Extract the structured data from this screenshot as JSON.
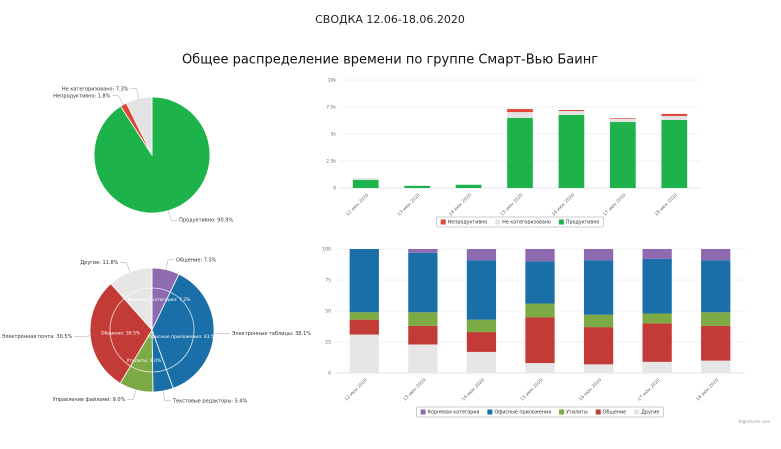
{
  "header": {
    "title": "СВОДКА 12.06-18.06.2020",
    "subtitle": "Общее распределение времени по группе Смарт-Вью Баинг"
  },
  "credits": "Highcharts.com",
  "chart_data": [
    {
      "type": "pie",
      "values": [
        90.9,
        1.8,
        7.3
      ],
      "value_labels": [
        "Продуктивно: 90.9%",
        "Непродуктивно: 1.8%",
        "Не категоризовано: 7.3%"
      ],
      "colors": [
        "#1db34a",
        "#e0463a",
        "#e3e3e3"
      ]
    },
    {
      "type": "stacked_bar",
      "categories": [
        "12 июн 2020",
        "13 июн 2020",
        "14 июн 2020",
        "15 июн 2020",
        "16 июн 2020",
        "17 июн 2020",
        "18 июн 2020"
      ],
      "series": [
        {
          "name": "Непродуктивно",
          "color": "#e0463a",
          "values": [
            0,
            0,
            0,
            280,
            90,
            60,
            190
          ]
        },
        {
          "name": "Не категоризовано",
          "color": "#e3e3e3",
          "values": [
            180,
            0,
            0,
            550,
            370,
            280,
            370
          ]
        },
        {
          "name": "Продуктивно",
          "color": "#1db34a",
          "values": [
            740,
            200,
            300,
            6480,
            6760,
            6110,
            6300
          ]
        }
      ],
      "ylim": [
        0,
        10000
      ],
      "yticks": [
        0,
        {
          "value": 2500,
          "label": "2.5k"
        },
        {
          "value": 5000,
          "label": "5k"
        },
        {
          "value": 7500,
          "label": "7.5k"
        },
        {
          "value": 10000,
          "label": "10k"
        }
      ],
      "grid": true
    },
    {
      "type": "pie",
      "values": [
        7.3,
        38.1,
        5.4,
        9.0,
        30.5,
        11.8
      ],
      "value_labels": [
        "Общение: 7.3%",
        "Электронные таблицы: 38.1%",
        "Текстовые редакторы: 5.4%",
        "Управление файлами: 9.0%",
        "Электронная почта: 30.5%",
        "Другие: 11.8%"
      ],
      "colors": [
        "#8e6bb0",
        "#1a6fa8",
        "#1a6fa8",
        "#7cab45",
        "#c23b37",
        "#e6e6e6"
      ],
      "inner": {
        "values": [
          7.2,
          43.5,
          9.0,
          30.5,
          11.8
        ],
        "value_labels": [
          "Корневая категория: 7.2%",
          "Офисные приложения: 43.5%",
          "Утилиты: 9.0%",
          "Общение: 30.5%",
          null
        ]
      }
    },
    {
      "type": "stacked_bar",
      "categories": [
        "12 июн 2020",
        "13 июн 2020",
        "14 июн 2020",
        "15 июн 2020",
        "16 июн 2020",
        "17 июн 2020",
        "18 июн 2020"
      ],
      "series": [
        {
          "name": "Корневая категория",
          "color": "#8e6bb0",
          "values": [
            0,
            3,
            9,
            10,
            9,
            8,
            9
          ]
        },
        {
          "name": "Офисные приложения",
          "color": "#1a6fa8",
          "values": [
            51,
            48,
            48,
            34,
            44,
            44,
            42
          ]
        },
        {
          "name": "Утилиты",
          "color": "#7cab45",
          "values": [
            6,
            11,
            10,
            11,
            10,
            8,
            11
          ]
        },
        {
          "name": "Общение",
          "color": "#c23b37",
          "values": [
            12,
            15,
            16,
            37,
            30,
            31,
            28
          ]
        },
        {
          "name": "Другие",
          "color": "#e6e6e6",
          "values": [
            31,
            23,
            17,
            8,
            7,
            9,
            10
          ]
        }
      ],
      "ylim": [
        0,
        100
      ],
      "yticks": [
        0,
        25,
        50,
        75,
        100
      ],
      "grid": true
    }
  ]
}
